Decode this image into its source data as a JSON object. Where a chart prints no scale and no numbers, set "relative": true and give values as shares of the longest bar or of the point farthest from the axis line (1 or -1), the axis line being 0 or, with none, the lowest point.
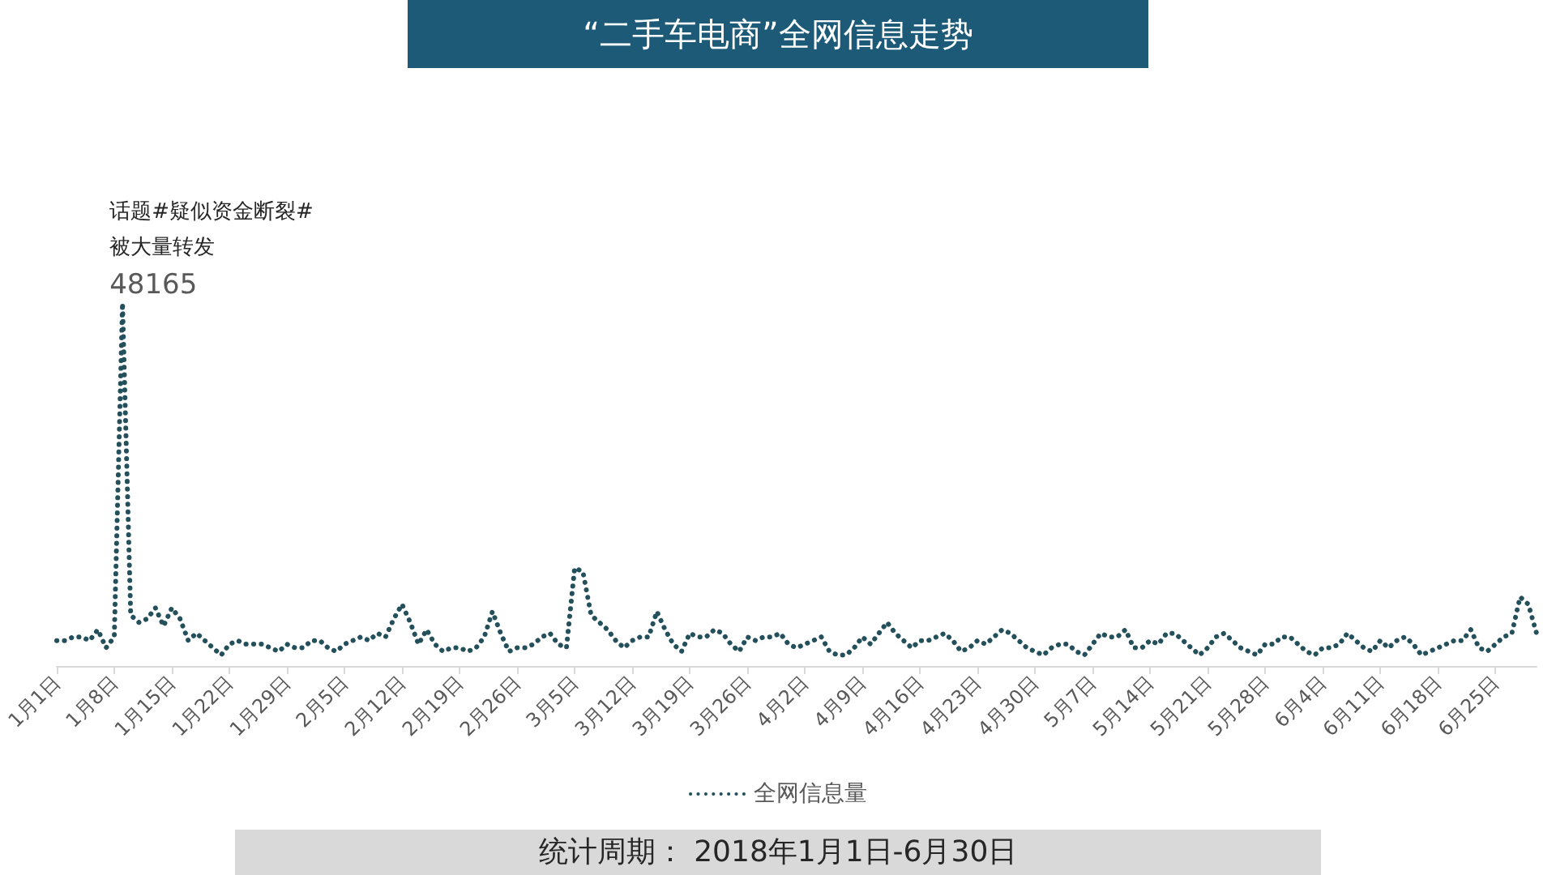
{
  "chart_data": {
    "type": "line",
    "title": "“二手车电商”全网信息走势",
    "relative": true,
    "legend": "bottom",
    "marker": "none",
    "line_style": "dotted",
    "categories": [
      "1月1日",
      null,
      null,
      null,
      null,
      null,
      null,
      "1月8日",
      null,
      null,
      null,
      null,
      null,
      null,
      "1月15日",
      null,
      null,
      null,
      null,
      null,
      null,
      "1月22日",
      null,
      null,
      null,
      null,
      null,
      null,
      "1月29日",
      null,
      null,
      null,
      null,
      null,
      null,
      "2月5日",
      null,
      null,
      null,
      null,
      null,
      null,
      "2月12日",
      null,
      null,
      null,
      null,
      null,
      null,
      "2月19日",
      null,
      null,
      null,
      null,
      null,
      null,
      "2月26日",
      null,
      null,
      null,
      null,
      null,
      null,
      "3月5日",
      null,
      null,
      null,
      null,
      null,
      null,
      "3月12日",
      null,
      null,
      null,
      null,
      null,
      null,
      "3月19日",
      null,
      null,
      null,
      null,
      null,
      null,
      "3月26日",
      null,
      null,
      null,
      null,
      null,
      null,
      "4月2日",
      null,
      null,
      null,
      null,
      null,
      null,
      "4月9日",
      null,
      null,
      null,
      null,
      null,
      null,
      "4月16日",
      null,
      null,
      null,
      null,
      null,
      null,
      "4月23日",
      null,
      null,
      null,
      null,
      null,
      null,
      "4月30日",
      null,
      null,
      null,
      null,
      null,
      null,
      "5月7日",
      null,
      null,
      null,
      null,
      null,
      null,
      "5月14日",
      null,
      null,
      null,
      null,
      null,
      null,
      "5月21日",
      null,
      null,
      null,
      null,
      null,
      null,
      "5月28日",
      null,
      null,
      null,
      null,
      null,
      null,
      "6月4日",
      null,
      null,
      null,
      null,
      null,
      null,
      "6月11日",
      null,
      null,
      null,
      null,
      null,
      null,
      "6月18日",
      null,
      null,
      null,
      null,
      null,
      null,
      "6月25日",
      null,
      null,
      null,
      null,
      null
    ],
    "series": [
      {
        "name": "全网信息量",
        "color": "#24505c",
        "values": [
          0.07,
          0.07,
          0.08,
          0.08,
          0.07,
          0.1,
          0.05,
          0.08,
          1,
          0.14,
          0.12,
          0.13,
          0.16,
          0.11,
          0.16,
          0.13,
          0.07,
          0.09,
          0.07,
          0.05,
          0.03,
          0.06,
          0.07,
          0.06,
          0.06,
          0.06,
          0.05,
          0.04,
          0.06,
          0.05,
          0.05,
          0.07,
          0.07,
          0.05,
          0.04,
          0.06,
          0.07,
          0.08,
          0.07,
          0.09,
          0.08,
          0.13,
          0.17,
          0.12,
          0.06,
          0.1,
          0.06,
          0.04,
          0.05,
          0.05,
          0.04,
          0.05,
          0.08,
          0.15,
          0.09,
          0.04,
          0.05,
          0.05,
          0.06,
          0.08,
          0.09,
          0.06,
          0.05,
          0.27,
          0.26,
          0.14,
          0.12,
          0.1,
          0.07,
          0.05,
          0.07,
          0.08,
          0.08,
          0.15,
          0.1,
          0.06,
          0.04,
          0.09,
          0.08,
          0.08,
          0.1,
          0.09,
          0.06,
          0.04,
          0.08,
          0.07,
          0.08,
          0.08,
          0.09,
          0.06,
          0.05,
          0.06,
          0.07,
          0.08,
          0.04,
          0.03,
          0.03,
          0.05,
          0.08,
          0.06,
          0.09,
          0.12,
          0.09,
          0.07,
          0.05,
          0.07,
          0.07,
          0.08,
          0.09,
          0.07,
          0.04,
          0.05,
          0.07,
          0.06,
          0.08,
          0.1,
          0.09,
          0.07,
          0.05,
          0.04,
          0.03,
          0.05,
          0.06,
          0.06,
          0.04,
          0.03,
          0.06,
          0.09,
          0.08,
          0.08,
          0.1,
          0.05,
          0.05,
          0.07,
          0.06,
          0.09,
          0.09,
          0.07,
          0.05,
          0.03,
          0.05,
          0.08,
          0.09,
          0.07,
          0.05,
          0.04,
          0.03,
          0.06,
          0.06,
          0.08,
          0.08,
          0.06,
          0.04,
          0.03,
          0.05,
          0.05,
          0.06,
          0.09,
          0.07,
          0.05,
          0.04,
          0.07,
          0.05,
          0.07,
          0.08,
          0.06,
          0.03,
          0.04,
          0.05,
          0.06,
          0.07,
          0.07,
          0.1,
          0.05,
          0.04,
          0.06,
          0.08,
          0.09,
          0.19,
          0.17,
          0.09
        ]
      }
    ],
    "annotations": [
      "话题#疑似资金断裂#被大量转发",
      "48165",
      "统计周期： 2018年1月1日-6月30日"
    ]
  }
}
